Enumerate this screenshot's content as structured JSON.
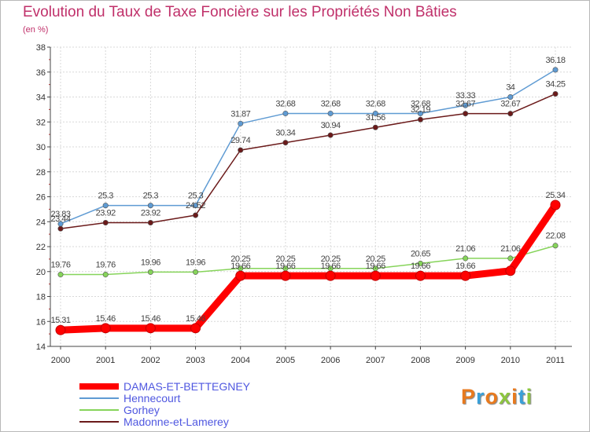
{
  "chart_data": {
    "type": "line",
    "title": "Evolution du Taux de Taxe Foncière sur les Propriétés Non Bâties",
    "ylabel": "(en %)",
    "xlabel": "",
    "ylim": [
      14,
      38
    ],
    "yticks": [
      14,
      16,
      18,
      20,
      22,
      24,
      26,
      28,
      30,
      32,
      34,
      36,
      38
    ],
    "categories": [
      "2000",
      "2001",
      "2002",
      "2003",
      "2004",
      "2005",
      "2006",
      "2007",
      "2008",
      "2009",
      "2010",
      "2011"
    ],
    "grid": true,
    "legend_position": "bottom-left",
    "series": [
      {
        "name": "DAMAS-ET-BETTEGNEY",
        "color": "#ff0000",
        "values": [
          15.31,
          15.46,
          15.46,
          15.46,
          19.66,
          19.66,
          19.66,
          19.66,
          19.66,
          19.66,
          20.06,
          25.34
        ],
        "labels": [
          "15.31",
          "15.46",
          "15.46",
          "15.46",
          "19.66",
          "19.66",
          "19.66",
          "19.66",
          "19.66",
          "19.66",
          "",
          "25.34"
        ]
      },
      {
        "name": "Hennecourt",
        "color": "#5f9bd3",
        "values": [
          23.83,
          25.3,
          25.3,
          25.3,
          31.87,
          32.68,
          32.68,
          32.68,
          32.68,
          33.33,
          34,
          36.18
        ],
        "labels": [
          "23.83",
          "25.3",
          "25.3",
          "25.3",
          "31.87",
          "32.68",
          "32.68",
          "32.68",
          "32.68",
          "33.33",
          "34",
          "36.18"
        ]
      },
      {
        "name": "Gorhey",
        "color": "#86d45a",
        "values": [
          19.76,
          19.76,
          19.96,
          19.96,
          20.25,
          20.25,
          20.25,
          20.25,
          20.65,
          21.06,
          21.06,
          22.08
        ],
        "labels": [
          "19.76",
          "19.76",
          "19.96",
          "19.96",
          "20.25",
          "20.25",
          "20.25",
          "20.25",
          "20.65",
          "21.06",
          "21.06",
          "22.08"
        ]
      },
      {
        "name": "Madonne-et-Lamerey",
        "color": "#6b1a1a",
        "values": [
          23.44,
          23.92,
          23.92,
          24.52,
          29.74,
          30.34,
          30.94,
          31.56,
          32.19,
          32.67,
          32.67,
          34.25
        ],
        "labels": [
          "23.44",
          "23.92",
          "23.92",
          "24.52",
          "29.74",
          "30.34",
          "30.94",
          "31.56",
          "32.19",
          "32.67",
          "32.67",
          "34.25"
        ]
      }
    ]
  },
  "logo": {
    "text": "Proxiti",
    "colors": [
      "#e87a1e",
      "#3aa0d8",
      "#e87a1e",
      "#8dc63f",
      "#e87a1e",
      "#3aa0d8",
      "#8dc63f"
    ]
  }
}
